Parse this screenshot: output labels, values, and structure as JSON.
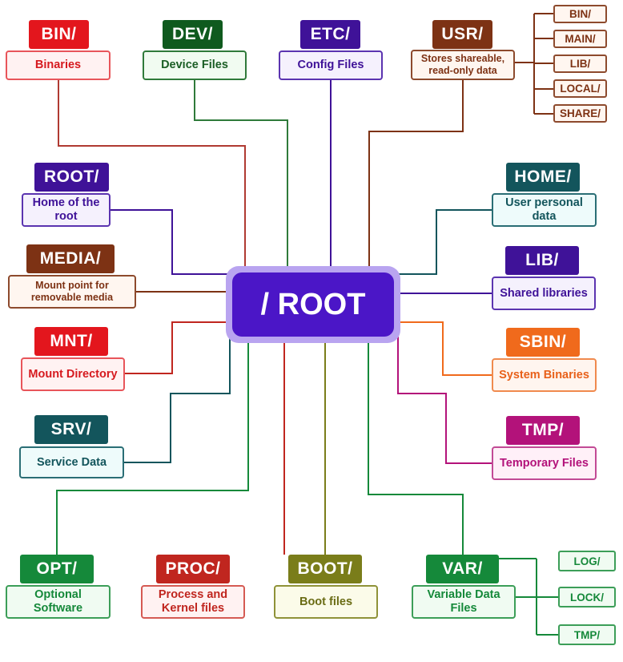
{
  "root": {
    "label": "/ ROOT"
  },
  "colors": {
    "root": "#4b16c7",
    "root_glow": "#b9a4f0",
    "red": "#e3161d",
    "green_dark": "#0f5a1e",
    "indigo": "#3f1298",
    "brown": "#7d3214",
    "teal": "#13555c",
    "orange": "#f06a1c",
    "magenta": "#b3127a",
    "green": "#15893a",
    "olive": "#7a7d1a"
  },
  "nodes": {
    "bin": {
      "title": "BIN/",
      "desc": "Binaries"
    },
    "dev": {
      "title": "DEV/",
      "desc": "Device Files"
    },
    "etc": {
      "title": "ETC/",
      "desc": "Config Files"
    },
    "usr": {
      "title": "USR/",
      "desc": "Stores shareable, read-only data",
      "children": [
        "BIN/",
        "MAIN/",
        "LIB/",
        "LOCAL/",
        "SHARE/"
      ]
    },
    "root_home": {
      "title": "ROOT/",
      "desc": "Home of the root"
    },
    "home": {
      "title": "HOME/",
      "desc": "User personal data"
    },
    "media": {
      "title": "MEDIA/",
      "desc": "Mount point for removable media"
    },
    "lib": {
      "title": "LIB/",
      "desc": "Shared libraries"
    },
    "mnt": {
      "title": "MNT/",
      "desc": "Mount Directory"
    },
    "sbin": {
      "title": "SBIN/",
      "desc": "System Binaries"
    },
    "srv": {
      "title": "SRV/",
      "desc": "Service Data"
    },
    "tmp": {
      "title": "TMP/",
      "desc": "Temporary Files"
    },
    "opt": {
      "title": "OPT/",
      "desc": "Optional Software"
    },
    "proc": {
      "title": "PROC/",
      "desc": "Process and Kernel files"
    },
    "boot": {
      "title": "BOOT/",
      "desc": "Boot files"
    },
    "var": {
      "title": "VAR/",
      "desc": "Variable Data Files",
      "children": [
        "LOG/",
        "LOCK/",
        "TMP/"
      ]
    }
  }
}
